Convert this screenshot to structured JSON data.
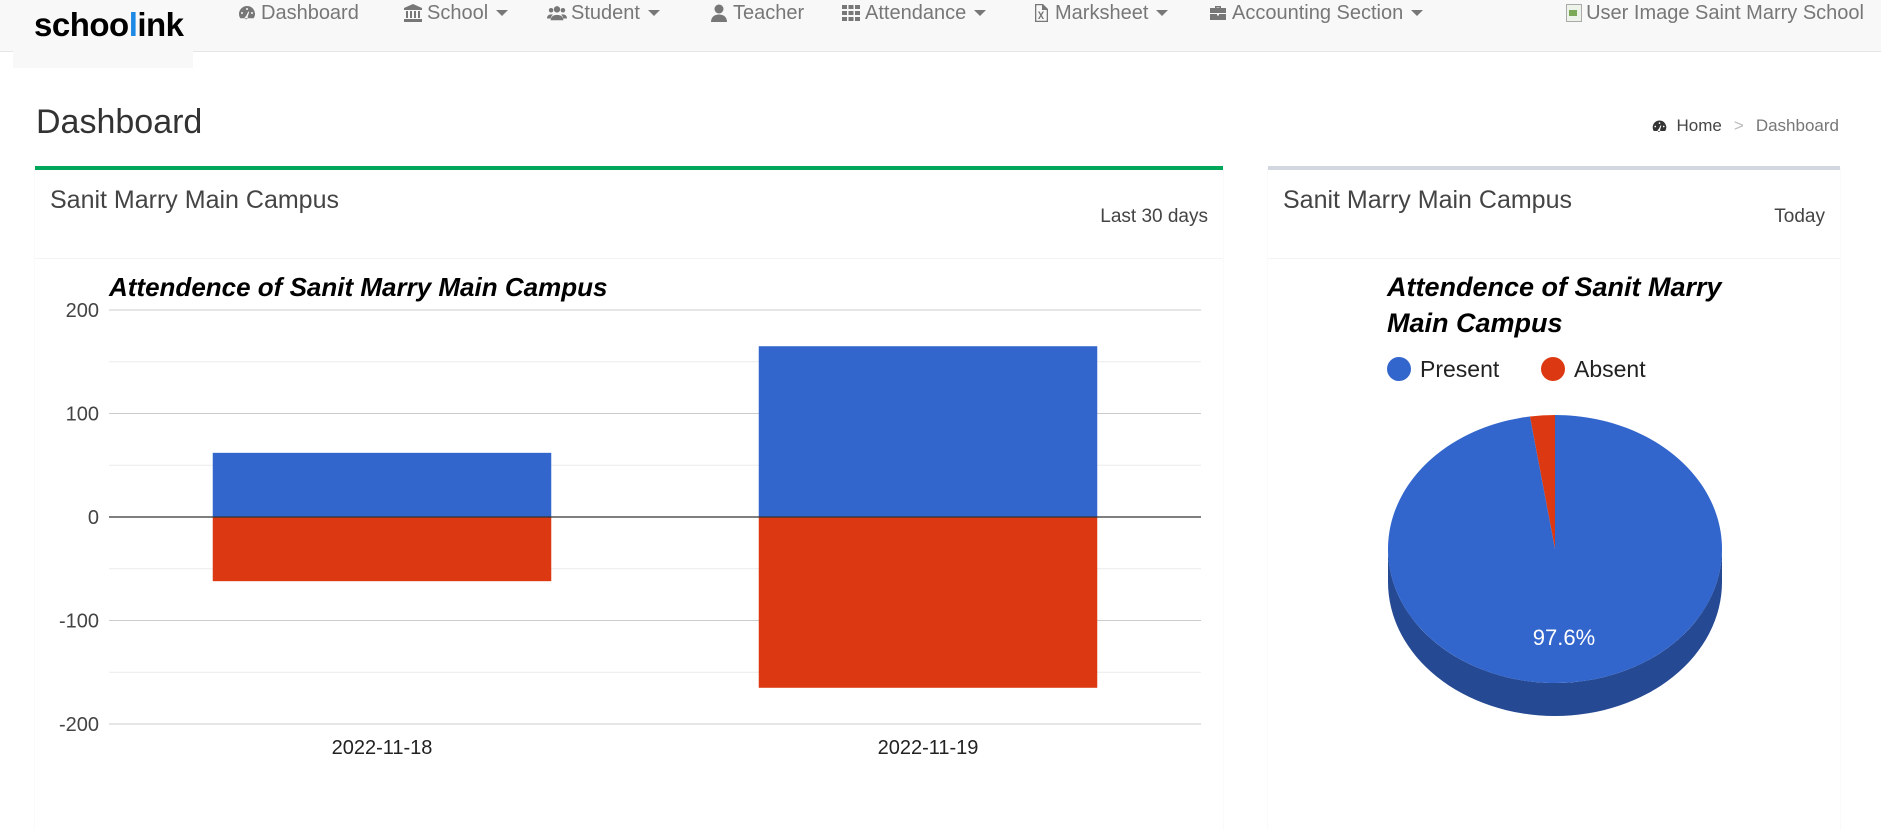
{
  "brand": {
    "logo_pre": "schoo",
    "logo_accent": "l",
    "logo_post": "ink"
  },
  "nav": {
    "dashboard": "Dashboard",
    "school": "School",
    "student": "Student",
    "teacher": "Teacher",
    "attendance": "Attendance",
    "marksheet": "Marksheet",
    "accounting": "Accounting Section",
    "user": "User Image Saint Marry School"
  },
  "page": {
    "title": "Dashboard",
    "breadcrumb_home": "Home",
    "breadcrumb_sep": ">",
    "breadcrumb_current": "Dashboard"
  },
  "left_box": {
    "title": "Sanit Marry Main Campus",
    "range": "Last 30 days"
  },
  "right_box": {
    "title": "Sanit Marry Main Campus",
    "range": "Today"
  },
  "colors": {
    "present": "#3366cc",
    "absent": "#dc3912",
    "accent_green": "#00a65a"
  },
  "chart_data": [
    {
      "type": "bar",
      "title": "Attendence of Sanit Marry Main Campus",
      "categories": [
        "2022-11-18",
        "2022-11-19"
      ],
      "series": [
        {
          "name": "Present",
          "color": "#3366cc",
          "values": [
            62,
            165
          ]
        },
        {
          "name": "Absent",
          "color": "#dc3912",
          "values": [
            -62,
            -165
          ]
        }
      ],
      "stacked": true,
      "ylim": [
        -200,
        200
      ],
      "yticks": [
        200,
        100,
        0,
        -100,
        -200
      ],
      "grid": true,
      "legend": "none"
    },
    {
      "type": "pie",
      "title": "Attendence of Sanit Marry Main Campus",
      "title_lines": [
        "Attendence of Sanit Marry",
        "Main Campus"
      ],
      "labels": [
        "Present",
        "Absent"
      ],
      "values": [
        97.6,
        2.4
      ],
      "colors": [
        "#3366cc",
        "#dc3912"
      ],
      "slice_label": "97.6%",
      "is3D": true,
      "legend": "top"
    }
  ]
}
